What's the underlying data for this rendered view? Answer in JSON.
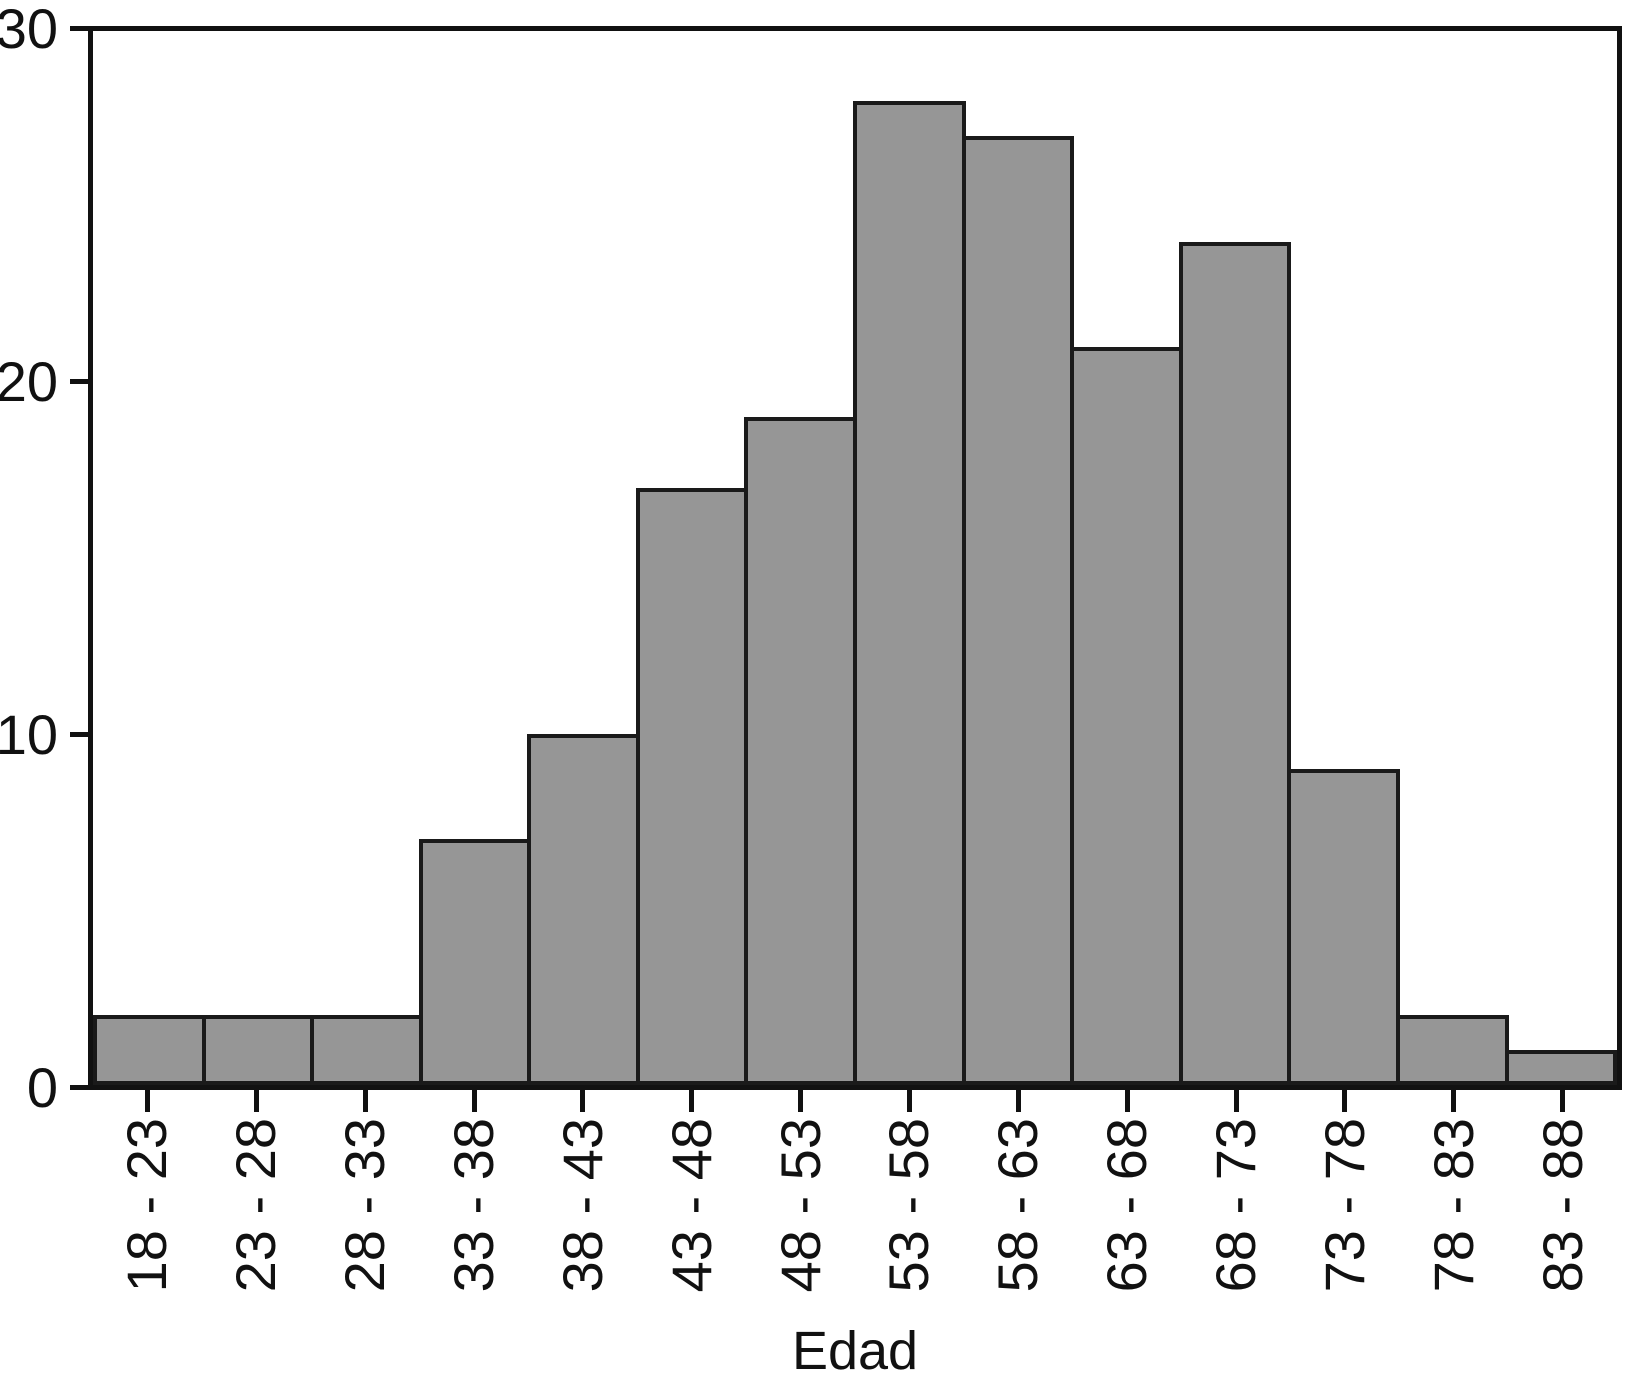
{
  "chart_data": {
    "type": "bar",
    "chart_kind": "histogram",
    "title": "",
    "xlabel": "Edad",
    "ylabel": "",
    "categories": [
      "18 - 23",
      "23 - 28",
      "28 - 33",
      "33 - 38",
      "38 - 43",
      "43 - 48",
      "48 - 53",
      "53 - 58",
      "58 - 63",
      "63 - 68",
      "68 - 73",
      "73 - 78",
      "78 - 83",
      "83 - 88"
    ],
    "values": [
      2,
      2,
      2,
      7,
      10,
      17,
      19,
      28,
      27,
      21,
      24,
      9,
      2,
      1
    ],
    "ylim": [
      0,
      30
    ],
    "yticks": [
      0,
      10,
      20,
      30
    ],
    "grid": false,
    "legend": "none",
    "colors": {
      "bar_fill": "#969696",
      "bar_border": "#1a1a1a",
      "axis": "#111111",
      "text": "#111111",
      "background": "#ffffff"
    }
  }
}
